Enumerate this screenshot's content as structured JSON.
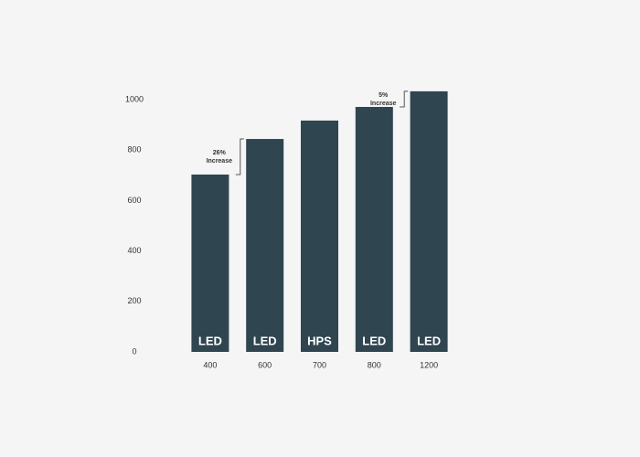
{
  "chart_data": {
    "type": "bar",
    "categories": [
      "400",
      "600",
      "700",
      "800",
      "1200"
    ],
    "values": [
      703,
      844,
      917,
      971,
      1033
    ],
    "bar_labels": [
      "LED",
      "LED",
      "HPS",
      "LED",
      "LED"
    ],
    "color": "#2f4550",
    "ylim": [
      0,
      1100
    ],
    "yticks": [
      0,
      200,
      400,
      600,
      800,
      1000
    ],
    "grid": false,
    "annotations": [
      {
        "lines": [
          "26%",
          "Increase"
        ]
      },
      {
        "lines": [
          "5%",
          "Increase"
        ]
      }
    ]
  }
}
